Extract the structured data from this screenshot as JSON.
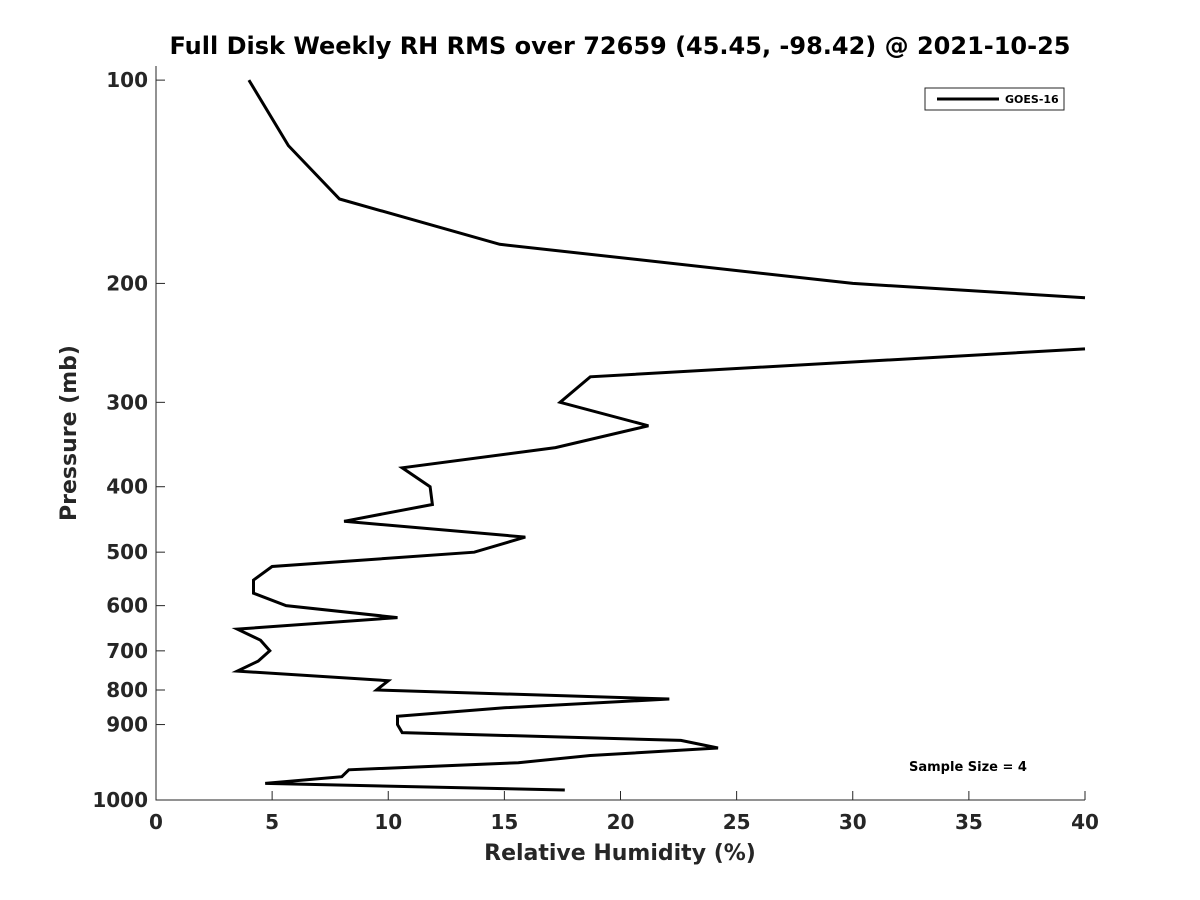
{
  "chart_data": {
    "type": "line",
    "title": "Full Disk Weekly RH RMS over 72659 (45.45, -98.42) @ 2021-10-25",
    "xlabel": "Relative Humidity (%)",
    "ylabel": "Pressure (mb)",
    "xlim": [
      0,
      40
    ],
    "ylim": [
      100,
      1000
    ],
    "y_scale": "log",
    "y_reversed": true,
    "grid": false,
    "legend_position": "top-right",
    "x_ticks": [
      0,
      5,
      10,
      15,
      20,
      25,
      30,
      35,
      40
    ],
    "x_tick_labels": [
      "0",
      "5",
      "10",
      "15",
      "20",
      "25",
      "30",
      "35",
      "40"
    ],
    "y_ticks": [
      100,
      200,
      300,
      400,
      500,
      600,
      700,
      800,
      900,
      1000
    ],
    "y_tick_labels": [
      "100",
      "200",
      "300",
      "400",
      "500",
      "600",
      "700",
      "800",
      "900",
      "1000"
    ],
    "annotation": "Sample Size = 4",
    "series": [
      {
        "name": "GOES-16",
        "color": "#000000",
        "segments": [
          [
            {
              "x": 4.0,
              "p": 100
            },
            {
              "x": 5.7,
              "p": 125
            },
            {
              "x": 7.9,
              "p": 150
            },
            {
              "x": 14.8,
              "p": 175
            },
            {
              "x": 30.0,
              "p": 200
            },
            {
              "x": 40.0,
              "p": 210
            }
          ],
          [
            {
              "x": 40.0,
              "p": 250
            },
            {
              "x": 18.7,
              "p": 275
            },
            {
              "x": 17.4,
              "p": 300
            },
            {
              "x": 21.2,
              "p": 325
            },
            {
              "x": 17.2,
              "p": 350
            },
            {
              "x": 10.6,
              "p": 375
            },
            {
              "x": 11.8,
              "p": 400
            },
            {
              "x": 11.9,
              "p": 425
            },
            {
              "x": 8.1,
              "p": 450
            },
            {
              "x": 15.9,
              "p": 475
            },
            {
              "x": 13.7,
              "p": 500
            },
            {
              "x": 5.0,
              "p": 525
            },
            {
              "x": 4.2,
              "p": 550
            },
            {
              "x": 4.2,
              "p": 575
            },
            {
              "x": 5.6,
              "p": 600
            },
            {
              "x": 10.4,
              "p": 625
            },
            {
              "x": 3.5,
              "p": 650
            },
            {
              "x": 4.5,
              "p": 675
            },
            {
              "x": 4.9,
              "p": 700
            },
            {
              "x": 4.4,
              "p": 725
            },
            {
              "x": 3.5,
              "p": 750
            },
            {
              "x": 10.0,
              "p": 775
            },
            {
              "x": 9.5,
              "p": 800
            },
            {
              "x": 22.1,
              "p": 825
            },
            {
              "x": 15.0,
              "p": 850
            },
            {
              "x": 10.4,
              "p": 875
            },
            {
              "x": 10.4,
              "p": 900
            },
            {
              "x": 10.6,
              "p": 925
            },
            {
              "x": 22.6,
              "p": 950
            },
            {
              "x": 24.2,
              "p": 975
            },
            {
              "x": 18.7,
              "p": 1000
            },
            {
              "x": 15.6,
              "p": 1025
            },
            {
              "x": 8.3,
              "p": 1050
            },
            {
              "x": 8.0,
              "p": 1075
            },
            {
              "x": 4.7,
              "p": 1100
            },
            {
              "x": 17.6,
              "p": 1125
            }
          ]
        ]
      }
    ]
  }
}
